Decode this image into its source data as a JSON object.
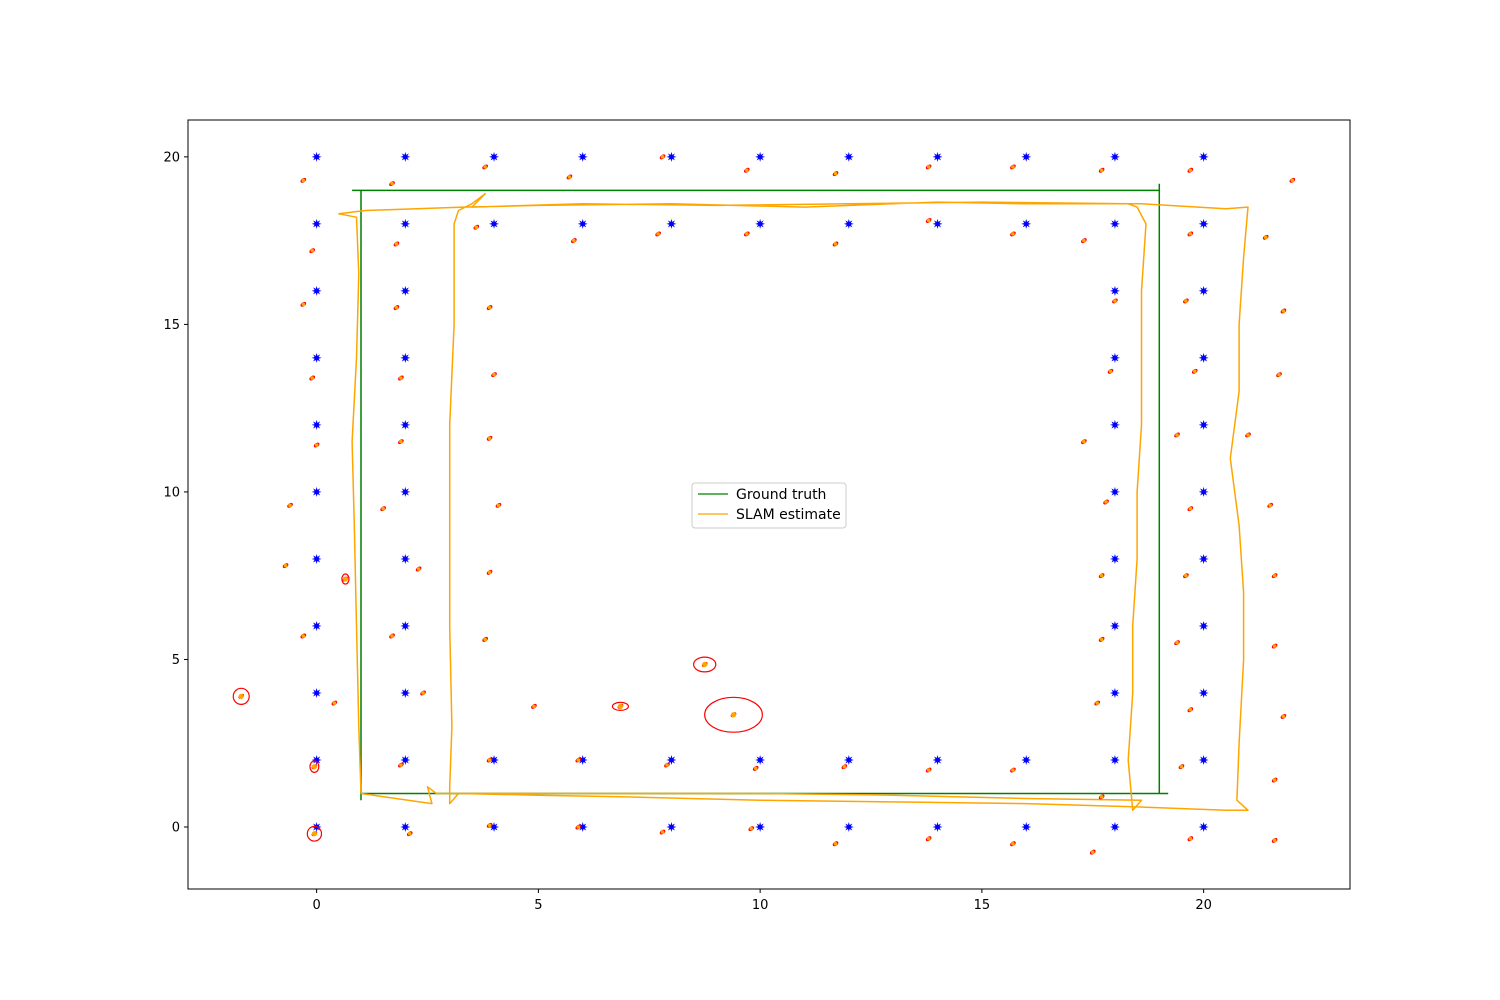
{
  "chart_data": {
    "type": "scatter",
    "title": "",
    "xlabel": "",
    "ylabel": "",
    "xlim": [
      -2.9,
      23.3
    ],
    "ylim": [
      -1.85,
      21.1
    ],
    "xticks": [
      0,
      5,
      10,
      15,
      20
    ],
    "yticks": [
      0,
      5,
      10,
      15,
      20
    ],
    "grid": false,
    "legend": {
      "placement": "center",
      "entries": [
        {
          "label": "Ground truth",
          "color": "#008000"
        },
        {
          "label": "SLAM estimate",
          "color": "#ffa500"
        }
      ]
    },
    "colors": {
      "ground_truth": "#008000",
      "slam_estimate": "#ffa500",
      "landmarks": "#0000ff",
      "landmark_estimates": "#ffa500",
      "covariance_ellipses": "#ff0000"
    },
    "series": [
      {
        "name": "Ground truth",
        "kind": "line",
        "points": [
          [
            1,
            0.8
          ],
          [
            1,
            19
          ],
          [
            0.8,
            19
          ],
          [
            19,
            19
          ],
          [
            19,
            19.2
          ],
          [
            19,
            1
          ],
          [
            19.2,
            1
          ],
          [
            1,
            1
          ]
        ]
      },
      {
        "name": "SLAM estimate",
        "kind": "line",
        "points": [
          [
            1.0,
            1.0
          ],
          [
            0.95,
            3.0
          ],
          [
            0.9,
            6.0
          ],
          [
            0.85,
            9.0
          ],
          [
            0.8,
            11.5
          ],
          [
            0.9,
            14.0
          ],
          [
            0.95,
            16.5
          ],
          [
            0.9,
            18.2
          ],
          [
            0.5,
            18.3
          ],
          [
            1.1,
            18.4
          ],
          [
            3.3,
            18.5
          ],
          [
            5.0,
            18.55
          ],
          [
            8.0,
            18.6
          ],
          [
            11.0,
            18.5
          ],
          [
            14.0,
            18.65
          ],
          [
            16.0,
            18.6
          ],
          [
            18.6,
            18.6
          ],
          [
            20.5,
            18.45
          ],
          [
            21.0,
            18.5
          ],
          [
            20.9,
            17.0
          ],
          [
            20.8,
            15.0
          ],
          [
            20.8,
            13.0
          ],
          [
            20.6,
            11.0
          ],
          [
            20.8,
            9.0
          ],
          [
            20.9,
            7.0
          ],
          [
            20.9,
            5.0
          ],
          [
            20.8,
            2.5
          ],
          [
            20.75,
            0.8
          ],
          [
            21.0,
            0.5
          ],
          [
            20.5,
            0.5
          ],
          [
            18.5,
            0.6
          ],
          [
            16.0,
            0.7
          ],
          [
            13.0,
            0.75
          ],
          [
            10.0,
            0.8
          ],
          [
            7.0,
            0.9
          ],
          [
            5.0,
            0.95
          ],
          [
            3.2,
            1.0
          ],
          [
            3.0,
            0.7
          ],
          [
            3.0,
            1.2
          ],
          [
            3.05,
            3.0
          ],
          [
            3.0,
            6.0
          ],
          [
            3.0,
            9.0
          ],
          [
            3.0,
            12.0
          ],
          [
            3.1,
            15.0
          ],
          [
            3.1,
            18.0
          ],
          [
            3.2,
            18.4
          ],
          [
            3.5,
            18.6
          ],
          [
            3.8,
            18.9
          ],
          [
            3.5,
            18.5
          ],
          [
            6.0,
            18.6
          ],
          [
            9.0,
            18.55
          ],
          [
            12.0,
            18.6
          ],
          [
            15.0,
            18.65
          ],
          [
            18.3,
            18.6
          ],
          [
            18.5,
            18.5
          ],
          [
            18.7,
            18.0
          ],
          [
            18.6,
            16.0
          ],
          [
            18.6,
            14.0
          ],
          [
            18.6,
            12.0
          ],
          [
            18.5,
            10.0
          ],
          [
            18.5,
            8.0
          ],
          [
            18.4,
            6.0
          ],
          [
            18.4,
            4.0
          ],
          [
            18.3,
            2.0
          ],
          [
            18.4,
            0.5
          ],
          [
            18.6,
            0.8
          ],
          [
            16.0,
            0.85
          ],
          [
            13.0,
            0.95
          ],
          [
            10.0,
            1.0
          ],
          [
            7.0,
            1.0
          ],
          [
            5.0,
            1.0
          ],
          [
            2.7,
            1.0
          ],
          [
            2.5,
            1.2
          ],
          [
            2.6,
            0.7
          ],
          [
            1.0,
            1.0
          ]
        ]
      },
      {
        "name": "Landmarks",
        "kind": "markers",
        "points": [
          [
            0,
            0
          ],
          [
            2,
            0
          ],
          [
            4,
            0
          ],
          [
            6,
            0
          ],
          [
            8,
            0
          ],
          [
            10,
            0
          ],
          [
            12,
            0
          ],
          [
            14,
            0
          ],
          [
            16,
            0
          ],
          [
            18,
            0
          ],
          [
            20,
            0
          ],
          [
            0,
            2
          ],
          [
            2,
            2
          ],
          [
            4,
            2
          ],
          [
            6,
            2
          ],
          [
            8,
            2
          ],
          [
            10,
            2
          ],
          [
            12,
            2
          ],
          [
            14,
            2
          ],
          [
            16,
            2
          ],
          [
            18,
            2
          ],
          [
            20,
            2
          ],
          [
            0,
            4
          ],
          [
            2,
            4
          ],
          [
            18,
            4
          ],
          [
            20,
            4
          ],
          [
            0,
            6
          ],
          [
            2,
            6
          ],
          [
            18,
            6
          ],
          [
            20,
            6
          ],
          [
            0,
            8
          ],
          [
            2,
            8
          ],
          [
            18,
            8
          ],
          [
            20,
            8
          ],
          [
            0,
            10
          ],
          [
            2,
            10
          ],
          [
            18,
            10
          ],
          [
            20,
            10
          ],
          [
            0,
            12
          ],
          [
            2,
            12
          ],
          [
            18,
            12
          ],
          [
            20,
            12
          ],
          [
            0,
            14
          ],
          [
            2,
            14
          ],
          [
            18,
            14
          ],
          [
            20,
            14
          ],
          [
            0,
            16
          ],
          [
            2,
            16
          ],
          [
            18,
            16
          ],
          [
            20,
            16
          ],
          [
            0,
            18
          ],
          [
            2,
            18
          ],
          [
            4,
            18
          ],
          [
            6,
            18
          ],
          [
            8,
            18
          ],
          [
            10,
            18
          ],
          [
            12,
            18
          ],
          [
            14,
            18
          ],
          [
            16,
            18
          ],
          [
            18,
            18
          ],
          [
            20,
            18
          ],
          [
            0,
            20
          ],
          [
            2,
            20
          ],
          [
            4,
            20
          ],
          [
            6,
            20
          ],
          [
            8,
            20
          ],
          [
            10,
            20
          ],
          [
            12,
            20
          ],
          [
            14,
            20
          ],
          [
            16,
            20
          ],
          [
            18,
            20
          ],
          [
            20,
            20
          ]
        ]
      },
      {
        "name": "Landmark estimates",
        "kind": "estimates",
        "points": [
          [
            -0.3,
            19.3
          ],
          [
            1.7,
            19.2
          ],
          [
            3.8,
            19.7
          ],
          [
            5.7,
            19.4
          ],
          [
            7.8,
            20.0
          ],
          [
            9.7,
            19.6
          ],
          [
            11.7,
            19.5
          ],
          [
            13.8,
            19.7
          ],
          [
            15.7,
            19.7
          ],
          [
            17.7,
            19.6
          ],
          [
            19.7,
            19.6
          ],
          [
            22.0,
            19.3
          ],
          [
            -0.1,
            17.2
          ],
          [
            1.8,
            17.4
          ],
          [
            3.6,
            17.9
          ],
          [
            5.8,
            17.5
          ],
          [
            7.7,
            17.7
          ],
          [
            9.7,
            17.7
          ],
          [
            11.7,
            17.4
          ],
          [
            13.8,
            18.1
          ],
          [
            15.7,
            17.7
          ],
          [
            17.3,
            17.5
          ],
          [
            19.7,
            17.7
          ],
          [
            21.4,
            17.6
          ],
          [
            -0.3,
            15.6
          ],
          [
            1.8,
            15.5
          ],
          [
            3.9,
            15.5
          ],
          [
            18.0,
            15.7
          ],
          [
            19.6,
            15.7
          ],
          [
            21.8,
            15.4
          ],
          [
            -0.1,
            13.4
          ],
          [
            1.9,
            13.4
          ],
          [
            4.0,
            13.5
          ],
          [
            17.9,
            13.6
          ],
          [
            19.8,
            13.6
          ],
          [
            21.7,
            13.5
          ],
          [
            0.0,
            11.4
          ],
          [
            1.9,
            11.5
          ],
          [
            3.9,
            11.6
          ],
          [
            17.3,
            11.5
          ],
          [
            19.4,
            11.7
          ],
          [
            21.0,
            11.7
          ],
          [
            -0.6,
            9.6
          ],
          [
            1.5,
            9.5
          ],
          [
            4.1,
            9.6
          ],
          [
            17.8,
            9.7
          ],
          [
            19.7,
            9.5
          ],
          [
            21.5,
            9.6
          ],
          [
            -0.7,
            7.8
          ],
          [
            0.65,
            7.4
          ],
          [
            2.3,
            7.7
          ],
          [
            3.9,
            7.6
          ],
          [
            17.7,
            7.5
          ],
          [
            19.6,
            7.5
          ],
          [
            21.6,
            7.5
          ],
          [
            -0.3,
            5.7
          ],
          [
            1.7,
            5.7
          ],
          [
            3.8,
            5.6
          ],
          [
            17.7,
            5.6
          ],
          [
            19.4,
            5.5
          ],
          [
            21.6,
            5.4
          ],
          [
            -1.7,
            3.9
          ],
          [
            0.4,
            3.7
          ],
          [
            2.4,
            4.0
          ],
          [
            4.9,
            3.6
          ],
          [
            6.85,
            3.6
          ],
          [
            8.75,
            4.85
          ],
          [
            9.4,
            3.35
          ],
          [
            17.6,
            3.7
          ],
          [
            19.7,
            3.5
          ],
          [
            21.8,
            3.3
          ],
          [
            -0.05,
            1.8
          ],
          [
            1.9,
            1.85
          ],
          [
            3.9,
            2.0
          ],
          [
            5.9,
            2.0
          ],
          [
            7.9,
            1.85
          ],
          [
            9.9,
            1.75
          ],
          [
            11.9,
            1.8
          ],
          [
            13.8,
            1.7
          ],
          [
            15.7,
            1.7
          ],
          [
            17.7,
            0.9
          ],
          [
            19.5,
            1.8
          ],
          [
            21.6,
            1.4
          ],
          [
            -0.05,
            -0.2
          ],
          [
            2.1,
            -0.2
          ],
          [
            3.9,
            0.05
          ],
          [
            5.9,
            0.0
          ],
          [
            7.8,
            -0.15
          ],
          [
            9.8,
            -0.05
          ],
          [
            11.7,
            -0.5
          ],
          [
            13.8,
            -0.35
          ],
          [
            15.7,
            -0.5
          ],
          [
            17.5,
            -0.75
          ],
          [
            19.7,
            -0.35
          ],
          [
            21.6,
            -0.4
          ]
        ]
      },
      {
        "name": "Covariance ellipses",
        "kind": "ellipses",
        "items": [
          {
            "center": [
              -1.7,
              3.9
            ],
            "semi_axes": [
              0.18,
              0.24
            ]
          },
          {
            "center": [
              8.75,
              4.85
            ],
            "semi_axes": [
              0.25,
              0.22
            ]
          },
          {
            "center": [
              6.85,
              3.6
            ],
            "semi_axes": [
              0.18,
              0.12
            ]
          },
          {
            "center": [
              9.4,
              3.35
            ],
            "semi_axes": [
              0.65,
              0.52
            ]
          },
          {
            "center": [
              -0.05,
              -0.2
            ],
            "semi_axes": [
              0.16,
              0.22
            ]
          },
          {
            "center": [
              -0.05,
              1.8
            ],
            "semi_axes": [
              0.1,
              0.17
            ]
          },
          {
            "center": [
              0.65,
              7.4
            ],
            "semi_axes": [
              0.08,
              0.15
            ]
          }
        ]
      }
    ]
  }
}
